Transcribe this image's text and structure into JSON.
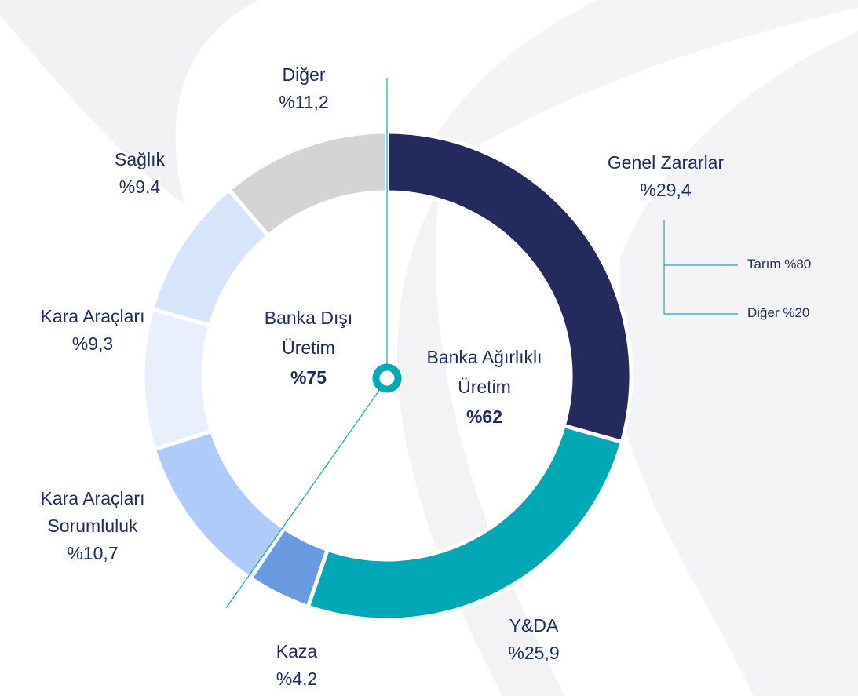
{
  "chart_data": {
    "type": "donut",
    "categories": [
      "Genel Zararlar",
      "Y&DA",
      "Kaza",
      "Kara Araçları Sorumluluk",
      "Kara Araçları",
      "Sağlık",
      "Diğer"
    ],
    "values": [
      29.4,
      25.9,
      4.2,
      10.7,
      9.3,
      9.4,
      11.2
    ],
    "value_labels": [
      "%29,4",
      "%25,9",
      "%4,2",
      "%10,7",
      "%9,3",
      "%9,4",
      "%11,2"
    ],
    "colors": [
      "#242a5e",
      "#00a8b5",
      "#6a9ae0",
      "#aecbfa",
      "#e9effc",
      "#d7e5fb",
      "#d4d4d4"
    ],
    "center_labels": [
      {
        "text": "Banka Dışı Üretim",
        "value_label": "%75"
      },
      {
        "text": "Banka Ağırlıklı Üretim",
        "value_label": "%62"
      }
    ],
    "breakdown": [
      "Tarım %80",
      "Diğer %20"
    ]
  }
}
